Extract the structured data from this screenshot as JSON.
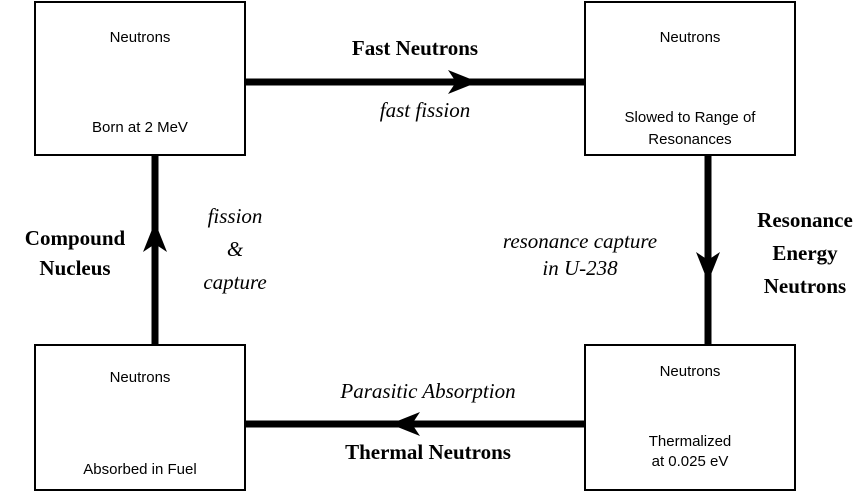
{
  "nodes": [
    {
      "top": "Neutrons",
      "bottom": [
        "Born at 2 MeV"
      ]
    },
    {
      "top": "Neutrons",
      "bottom": [
        "Slowed to Range of",
        "Resonances"
      ]
    },
    {
      "top": "Neutrons",
      "bottom": [
        "Thermalized",
        "at 0.025 eV"
      ]
    },
    {
      "top": "Neutrons",
      "bottom": [
        "Absorbed in Fuel"
      ]
    }
  ],
  "edges": [
    {
      "label": [
        "Fast Neutrons"
      ],
      "process": [
        "fast fission"
      ]
    },
    {
      "label": [
        "Resonance",
        "Energy",
        "Neutrons"
      ],
      "process": [
        "resonance capture",
        "in U-238"
      ]
    },
    {
      "label": [
        "Thermal Neutrons"
      ],
      "process": [
        "Parasitic Absorption"
      ]
    },
    {
      "label": [
        "Compound",
        "Nucleus"
      ],
      "process": [
        "fission",
        "&",
        "capture"
      ]
    }
  ]
}
